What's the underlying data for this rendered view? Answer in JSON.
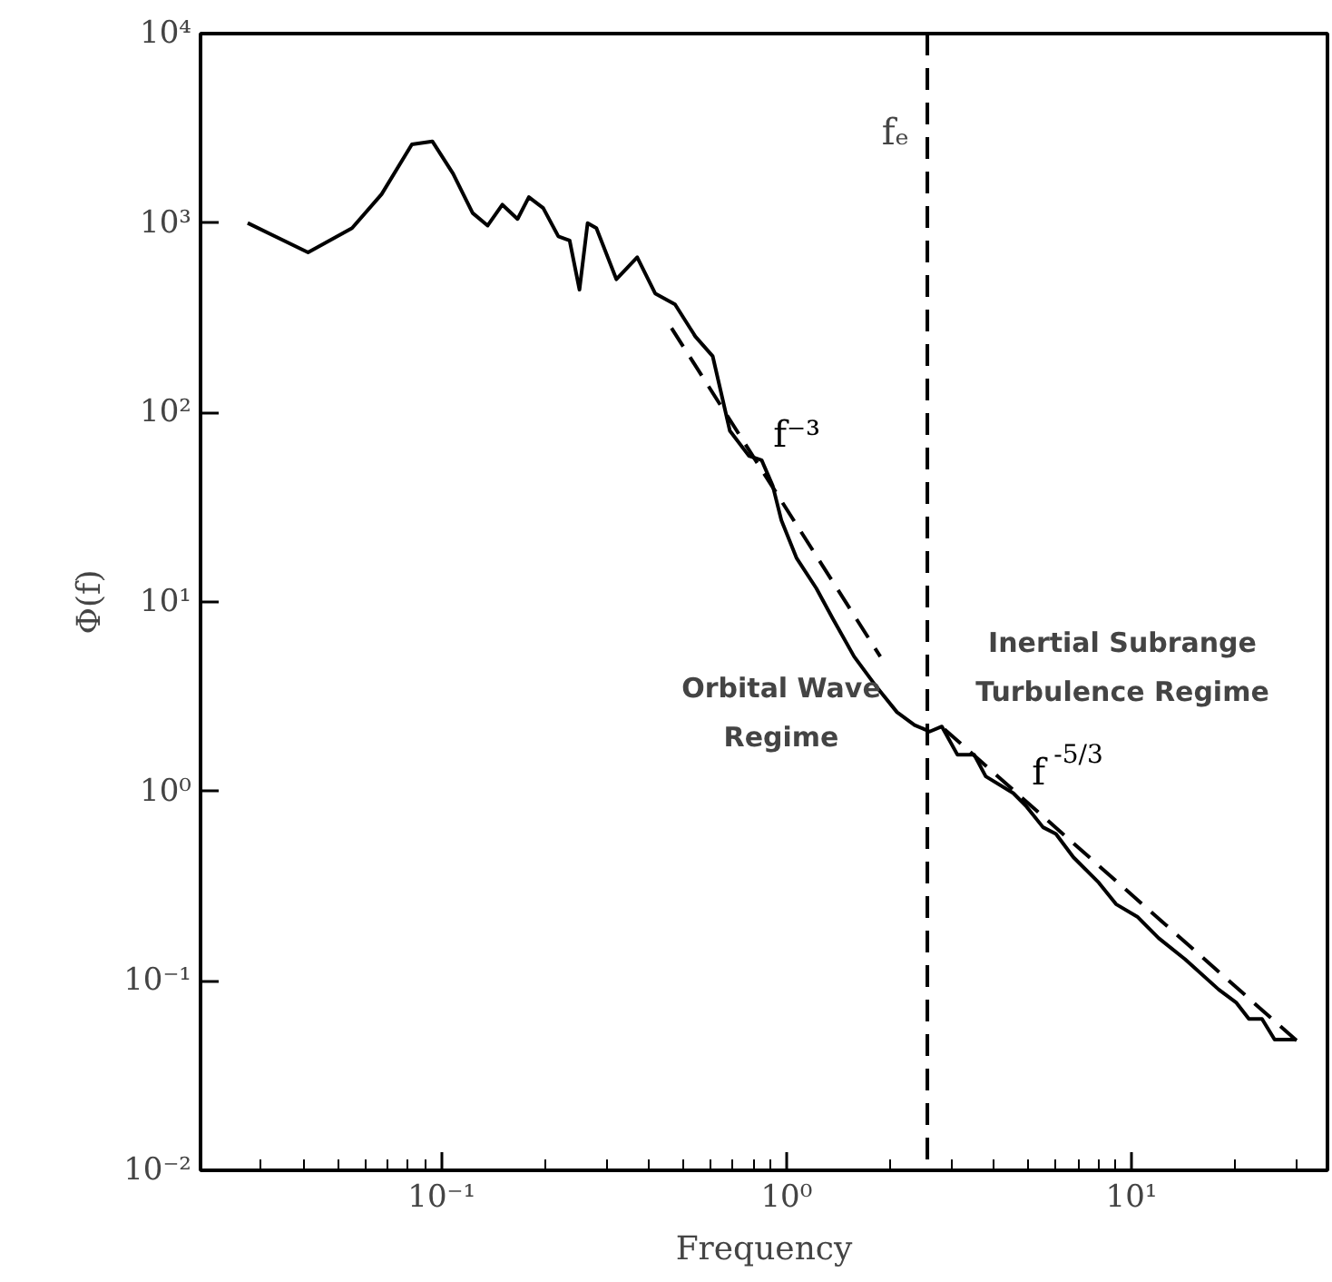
{
  "chart_data": {
    "type": "line",
    "xlabel": "Frequency",
    "ylabel": "Φ(f)",
    "log": "xy",
    "grid": false,
    "marker": "none",
    "xlim": [
      0.02,
      37
    ],
    "ylim": [
      0.01,
      10000
    ],
    "xticks": [
      {
        "value": 0.1,
        "label": "10⁻¹"
      },
      {
        "value": 1,
        "label": "10⁰"
      },
      {
        "value": 10,
        "label": "10¹"
      }
    ],
    "yticks": [
      {
        "value": 0.01,
        "label": "10⁻²"
      },
      {
        "value": 0.1,
        "label": "10⁻¹"
      },
      {
        "value": 1,
        "label": "10⁰"
      },
      {
        "value": 10,
        "label": "10¹"
      },
      {
        "value": 100,
        "label": "10²"
      },
      {
        "value": 1000,
        "label": "10³"
      },
      {
        "value": 10000,
        "label": "10⁴"
      }
    ],
    "series": [
      {
        "color": "#000000",
        "line_style": "solid",
        "x": [
          0.0274,
          0.041,
          0.055,
          0.067,
          0.082,
          0.094,
          0.108,
          0.123,
          0.136,
          0.15,
          0.166,
          0.179,
          0.197,
          0.218,
          0.235,
          0.251,
          0.265,
          0.281,
          0.321,
          0.369,
          0.416,
          0.475,
          0.544,
          0.611,
          0.685,
          0.778,
          0.847,
          0.912,
          0.966,
          1.07,
          1.22,
          1.36,
          1.57,
          1.82,
          2.09,
          2.35,
          2.6,
          2.82,
          3.13,
          3.5,
          3.78,
          4.54,
          4.94,
          5.54,
          6.04,
          6.78,
          8.04,
          9.02,
          10.4,
          12.0,
          14.3,
          17.9,
          20.1,
          21.9,
          23.9,
          26.0,
          30.1
        ],
        "values": [
          1000,
          700,
          940,
          1420,
          2600,
          2700,
          1820,
          1130,
          970,
          1250,
          1050,
          1370,
          1200,
          850,
          810,
          445,
          1000,
          940,
          505,
          660,
          425,
          372,
          252,
          198,
          80,
          59,
          56,
          41,
          27,
          17,
          11.8,
          8.2,
          5.15,
          3.58,
          2.62,
          2.24,
          2.07,
          2.2,
          1.56,
          1.56,
          1.2,
          0.98,
          0.84,
          0.647,
          0.596,
          0.45,
          0.33,
          0.254,
          0.218,
          0.168,
          0.13,
          0.09,
          0.077,
          0.063,
          0.063,
          0.049,
          0.049
        ]
      },
      {
        "name": "f⁻³",
        "color": "#000000",
        "line_style": "dashed",
        "x": [
          0.464,
          1.87
        ],
        "values": [
          279,
          5.15
        ]
      },
      {
        "name": "f$^{-5/3}$",
        "color": "#000000",
        "line_style": "dashed",
        "x": [
          2.87,
          30.1
        ],
        "values": [
          2.13,
          0.0484
        ]
      }
    ],
    "ref_lines": [
      {
        "axis": "x",
        "value": 2.56,
        "label": "fₑ",
        "line_style": "dashed",
        "color": "#000000"
      }
    ],
    "annotations": [
      "Orbital Wave\nRegime",
      "Inertial Subrange\nTurbulence Regime"
    ]
  }
}
